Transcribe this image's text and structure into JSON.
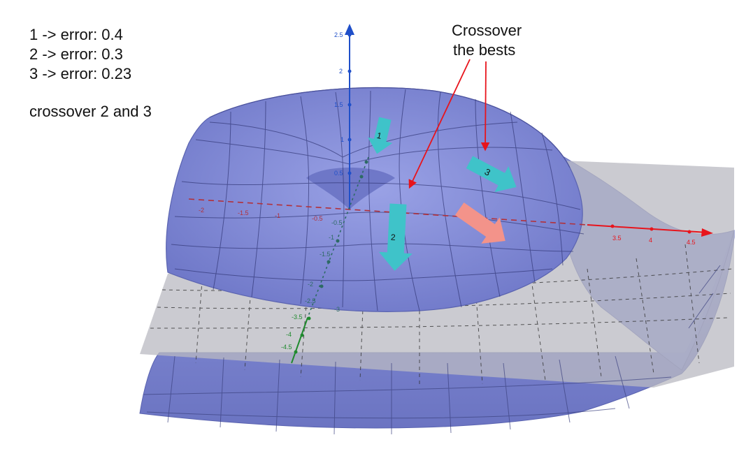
{
  "errors": [
    {
      "label": "1 -> error: 0.4"
    },
    {
      "label": "2 -> error: 0.3"
    },
    {
      "label": "3 -> error: 0.23"
    }
  ],
  "crossover_note": "crossover 2 and 3",
  "callout": {
    "line1": "Crossover",
    "line2": "the bests"
  },
  "arrows": {
    "a1": "1",
    "a2": "2",
    "a3": "3"
  },
  "axes": {
    "z_ticks": [
      "2.5",
      "2",
      "1.5",
      "1",
      "0.5"
    ],
    "x_ticks_pos": [
      "3.5",
      "4",
      "4.5"
    ],
    "x_ticks_neg": [
      "-2",
      "-1.5",
      "-1",
      "-0.5"
    ],
    "y_ticks": [
      "-0.5",
      "-1",
      "-1.5",
      "-2",
      "-2.5",
      "-3",
      "-3.5",
      "-4",
      "-4.5"
    ]
  },
  "colors": {
    "surface": "#7f88d6",
    "surface_edge": "#5a63b0",
    "plane": "#b9b9c2",
    "z_axis": "#1f4fc9",
    "x_axis": "#e8141c",
    "y_axis": "#1f8a2e",
    "cyan_arrow": "#3fc3c9",
    "salmon_arrow": "#f3938a",
    "red_pointer": "#e8141c"
  }
}
